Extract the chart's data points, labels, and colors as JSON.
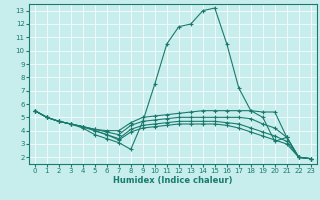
{
  "xlabel": "Humidex (Indice chaleur)",
  "xlim": [
    -0.5,
    23.5
  ],
  "ylim": [
    1.5,
    13.5
  ],
  "xticks": [
    0,
    1,
    2,
    3,
    4,
    5,
    6,
    7,
    8,
    9,
    10,
    11,
    12,
    13,
    14,
    15,
    16,
    17,
    18,
    19,
    20,
    21,
    22,
    23
  ],
  "yticks": [
    2,
    3,
    4,
    5,
    6,
    7,
    8,
    9,
    10,
    11,
    12,
    13
  ],
  "line_color": "#1a7a6e",
  "bg_color": "#c8eded",
  "grid_color": "#ffffff",
  "lines": [
    {
      "x": [
        0,
        1,
        2,
        3,
        4,
        5,
        6,
        7,
        8,
        9,
        10,
        11,
        12,
        13,
        14,
        15,
        16,
        17,
        18,
        19,
        20,
        21,
        22,
        23
      ],
      "y": [
        5.5,
        5.0,
        4.7,
        4.5,
        4.2,
        3.7,
        3.4,
        3.1,
        2.6,
        4.7,
        7.5,
        10.5,
        11.8,
        12.0,
        13.0,
        13.2,
        10.5,
        7.2,
        5.5,
        5.0,
        3.2,
        3.5,
        2.0,
        1.9
      ]
    },
    {
      "x": [
        0,
        1,
        2,
        3,
        4,
        5,
        6,
        7,
        8,
        9,
        10,
        11,
        12,
        13,
        14,
        15,
        16,
        17,
        18,
        19,
        20,
        21,
        22,
        23
      ],
      "y": [
        5.5,
        5.0,
        4.7,
        4.5,
        4.3,
        4.1,
        4.0,
        4.0,
        4.6,
        5.0,
        5.1,
        5.2,
        5.3,
        5.4,
        5.5,
        5.5,
        5.5,
        5.5,
        5.5,
        5.4,
        5.4,
        3.5,
        2.0,
        1.9
      ]
    },
    {
      "x": [
        0,
        1,
        2,
        3,
        4,
        5,
        6,
        7,
        8,
        9,
        10,
        11,
        12,
        13,
        14,
        15,
        16,
        17,
        18,
        19,
        20,
        21,
        22,
        23
      ],
      "y": [
        5.5,
        5.0,
        4.7,
        4.5,
        4.3,
        4.1,
        3.9,
        3.7,
        4.4,
        4.7,
        4.8,
        4.9,
        5.0,
        5.0,
        5.0,
        5.0,
        5.0,
        5.0,
        4.9,
        4.5,
        4.2,
        3.5,
        2.0,
        1.9
      ]
    },
    {
      "x": [
        0,
        1,
        2,
        3,
        4,
        5,
        6,
        7,
        8,
        9,
        10,
        11,
        12,
        13,
        14,
        15,
        16,
        17,
        18,
        19,
        20,
        21,
        22,
        23
      ],
      "y": [
        5.5,
        5.0,
        4.7,
        4.5,
        4.3,
        4.0,
        3.7,
        3.4,
        4.1,
        4.4,
        4.5,
        4.6,
        4.7,
        4.7,
        4.7,
        4.7,
        4.6,
        4.5,
        4.2,
        3.9,
        3.6,
        3.2,
        2.0,
        1.9
      ]
    },
    {
      "x": [
        0,
        1,
        2,
        3,
        4,
        5,
        6,
        7,
        8,
        9,
        10,
        11,
        12,
        13,
        14,
        15,
        16,
        17,
        18,
        19,
        20,
        21,
        22,
        23
      ],
      "y": [
        5.5,
        5.0,
        4.7,
        4.5,
        4.3,
        4.0,
        3.7,
        3.3,
        3.9,
        4.2,
        4.3,
        4.4,
        4.5,
        4.5,
        4.5,
        4.5,
        4.4,
        4.2,
        3.9,
        3.6,
        3.3,
        3.0,
        2.0,
        1.9
      ]
    }
  ]
}
